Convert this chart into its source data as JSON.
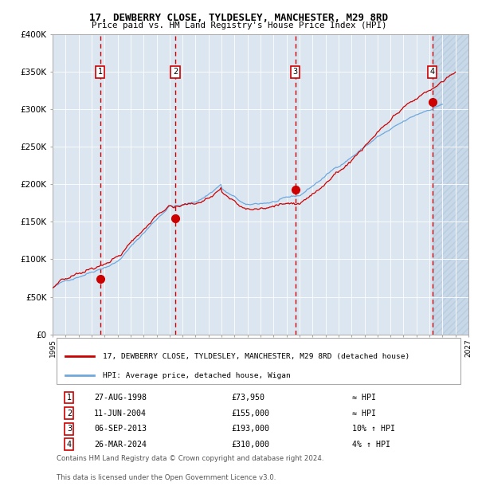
{
  "title1": "17, DEWBERRY CLOSE, TYLDESLEY, MANCHESTER, M29 8RD",
  "title2": "Price paid vs. HM Land Registry's House Price Index (HPI)",
  "ylabel_ticks": [
    "£0",
    "£50K",
    "£100K",
    "£150K",
    "£200K",
    "£250K",
    "£300K",
    "£350K",
    "£400K"
  ],
  "ytick_vals": [
    0,
    50000,
    100000,
    150000,
    200000,
    250000,
    300000,
    350000,
    400000
  ],
  "xlim": [
    1995.0,
    2027.0
  ],
  "ylim": [
    0,
    400000
  ],
  "bg_color": "#dce6f1",
  "grid_color": "#ffffff",
  "hpi_line_color": "#6fa8dc",
  "price_line_color": "#cc0000",
  "sale_marker_color": "#cc0000",
  "dashed_line_color": "#cc0000",
  "label_box_color": "#cc0000",
  "purchases": [
    {
      "num": 1,
      "date": "27-AUG-1998",
      "price": 73950,
      "year": 1998.65,
      "hpi_note": "≈ HPI"
    },
    {
      "num": 2,
      "date": "11-JUN-2004",
      "price": 155000,
      "year": 2004.44,
      "hpi_note": "≈ HPI"
    },
    {
      "num": 3,
      "date": "06-SEP-2013",
      "price": 193000,
      "year": 2013.68,
      "hpi_note": "10% ↑ HPI"
    },
    {
      "num": 4,
      "date": "26-MAR-2024",
      "price": 310000,
      "year": 2024.23,
      "hpi_note": "4% ↑ HPI"
    }
  ],
  "legend_line1": "17, DEWBERRY CLOSE, TYLDESLEY, MANCHESTER, M29 8RD (detached house)",
  "legend_line2": "HPI: Average price, detached house, Wigan",
  "footer1": "Contains HM Land Registry data © Crown copyright and database right 2024.",
  "footer2": "This data is licensed under the Open Government Licence v3.0.",
  "hatch_start": 2024.23,
  "hatch_end": 2027.0
}
